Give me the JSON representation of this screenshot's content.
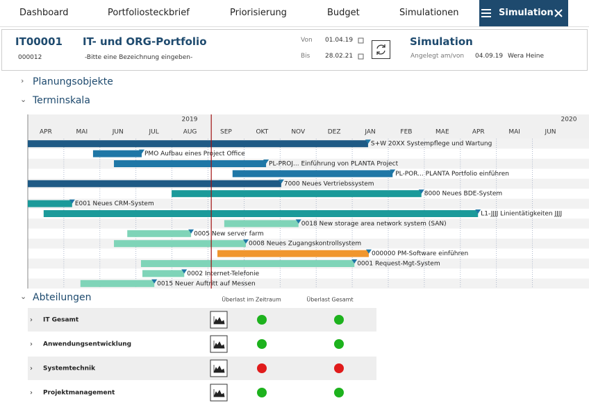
{
  "nav": {
    "tabs": [
      "Dashboard",
      "Portfoliosteckbrief",
      "Priorisierung",
      "Budget",
      "Simulationen"
    ],
    "active": "Simulation"
  },
  "header": {
    "id": "IT00001",
    "sub_id": "000012",
    "title": "IT- und ORG-Portfolio",
    "description": "-Bitte eine Bezeichnung eingeben-",
    "from_label": "Von",
    "from": "01.04.19",
    "to_label": "Bis",
    "to": "28.02.21",
    "mode": "Simulation",
    "created_label": "Angelegt am/von",
    "created_date": "04.09.19",
    "created_by": "Wera Heine"
  },
  "sections": [
    "Planungsobjekte",
    "Terminskala",
    "Abteilungen"
  ],
  "gantt": {
    "years": [
      "2019",
      "2020"
    ],
    "months": [
      "APR",
      "MAI",
      "JUN",
      "JUL",
      "AUG",
      "SEP",
      "OKT",
      "NOV",
      "DEZ",
      "JAN",
      "FEB",
      "MAE",
      "APR",
      "MAI",
      "JUN"
    ],
    "today": 5.09,
    "rows": [
      {
        "label": "S+W 20XX Systempflege und Wartung",
        "start": 0,
        "end": 9.44,
        "color": "#1f5a85"
      },
      {
        "label": "PMO Aufbau eines Project Office",
        "start": 1.81,
        "end": 3.16,
        "color": "#1f77a6"
      },
      {
        "label": "PL-PROJ... Einführung von PLANTA Project",
        "start": 2.39,
        "end": 6.61,
        "color": "#1f77a6"
      },
      {
        "label": "PL-POR... PLANTA Portfolio einführen",
        "start": 5.68,
        "end": 10.12,
        "color": "#1f77a6"
      },
      {
        "label": "7000 Neues Vertriebssystem",
        "start": 0,
        "end": 7.03,
        "color": "#1f5a85"
      },
      {
        "label": "8000 Neues BDE-System",
        "start": 3.99,
        "end": 10.92,
        "color": "#1b9a9a"
      },
      {
        "label": "E001 Neues CRM-System",
        "start": 0,
        "end": 1.23,
        "color": "#1b9a9a"
      },
      {
        "label": "L1-JJJJ Linientätigkeiten JJJJ",
        "start": 0.44,
        "end": 12.49,
        "color": "#1b9a9a"
      },
      {
        "label": "0018 New storage area network system (SAN)",
        "start": 5.45,
        "end": 7.51,
        "color": "#7fd4b8"
      },
      {
        "label": "0005 New server farm",
        "start": 2.76,
        "end": 4.53,
        "color": "#7fd4b8"
      },
      {
        "label": "0008 Neues Zugangskontrollsystem",
        "start": 2.39,
        "end": 6.05,
        "color": "#7fd4b8"
      },
      {
        "label": "000000 PM-Software einführen",
        "start": 5.26,
        "end": 9.46,
        "color": "#f0962e"
      },
      {
        "label": "0001 Request-Mgt-System",
        "start": 3.14,
        "end": 9.06,
        "color": "#7fd4b8"
      },
      {
        "label": "0002 Internet-Telefonie",
        "start": 3.18,
        "end": 4.34,
        "color": "#7fd4b8"
      },
      {
        "label": "0015 Neuer Auftritt auf Messen",
        "start": 1.46,
        "end": 3.51,
        "color": "#7fd4b8"
      }
    ]
  },
  "departments": {
    "columns": [
      "Überlast im Zeitraum",
      "Überlast Gesamt"
    ],
    "rows": [
      {
        "name": "IT Gesamt",
        "period_color": "#1db21d",
        "total_color": "#1db21d"
      },
      {
        "name": "Anwendungsentwicklung",
        "period_color": "#1db21d",
        "total_color": "#1db21d"
      },
      {
        "name": "Systemtechnik",
        "period_color": "#e01b1b",
        "total_color": "#e01b1b"
      },
      {
        "name": "Projektmanagement",
        "period_color": "#1db21d",
        "total_color": "#1db21d"
      }
    ]
  }
}
